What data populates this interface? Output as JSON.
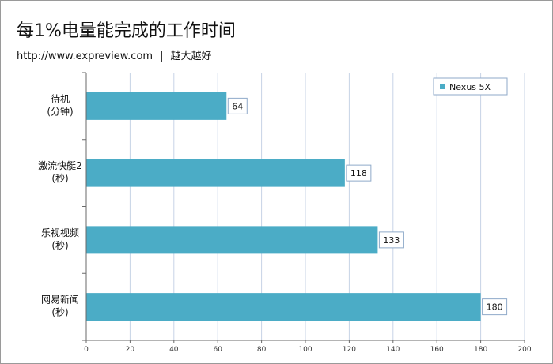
{
  "header": {
    "title": "每1%电量能完成的工作时间",
    "site_url": "http://www.expreview.com",
    "separator": "|",
    "slogan": "越大越好"
  },
  "colors": {
    "bar": "#4bacc6",
    "grid": "#c7d3e6",
    "axis": "#6a6a6a"
  },
  "chart_data": {
    "type": "bar",
    "orientation": "horizontal",
    "categories": [
      [
        "待机",
        "(分钟)"
      ],
      [
        "激流快艇2",
        "(秒)"
      ],
      [
        "乐视视频",
        "(秒)"
      ],
      [
        "网易新闻",
        "(秒)"
      ]
    ],
    "series": [
      {
        "name": "Nexus 5X",
        "values": [
          64,
          118,
          133,
          180
        ]
      }
    ],
    "xlim": [
      0,
      200
    ],
    "xticks": [
      0,
      20,
      40,
      60,
      80,
      100,
      120,
      140,
      160,
      180,
      200
    ],
    "grid": true,
    "legend_position": "top-right",
    "data_labels": true
  }
}
